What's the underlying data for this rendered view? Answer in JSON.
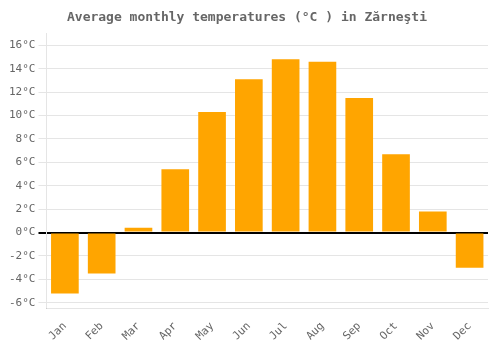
{
  "chart_data": {
    "type": "bar",
    "title": "Average monthly temperatures (°C ) in Zărneşti",
    "categories": [
      "Jan",
      "Feb",
      "Mar",
      "Apr",
      "May",
      "Jun",
      "Jul",
      "Aug",
      "Sep",
      "Oct",
      "Nov",
      "Dec"
    ],
    "values": [
      -5.2,
      -3.5,
      0.4,
      5.4,
      10.3,
      13.1,
      14.8,
      14.6,
      11.5,
      6.7,
      1.8,
      -3.0
    ],
    "color": "#FFA500",
    "ylim": [
      -6.5,
      17
    ],
    "yticks": [
      {
        "value": -6,
        "label": "-6°C"
      },
      {
        "value": -4,
        "label": "-4°C"
      },
      {
        "value": -2,
        "label": "-2°C"
      },
      {
        "value": 0,
        "label": "0°C"
      },
      {
        "value": 2,
        "label": "2°C"
      },
      {
        "value": 4,
        "label": "4°C"
      },
      {
        "value": 6,
        "label": "6°C"
      },
      {
        "value": 8,
        "label": "8°C"
      },
      {
        "value": 10,
        "label": "10°C"
      },
      {
        "value": 12,
        "label": "12°C"
      },
      {
        "value": 14,
        "label": "14°C"
      },
      {
        "value": 16,
        "label": "16°C"
      }
    ],
    "grid": true
  }
}
